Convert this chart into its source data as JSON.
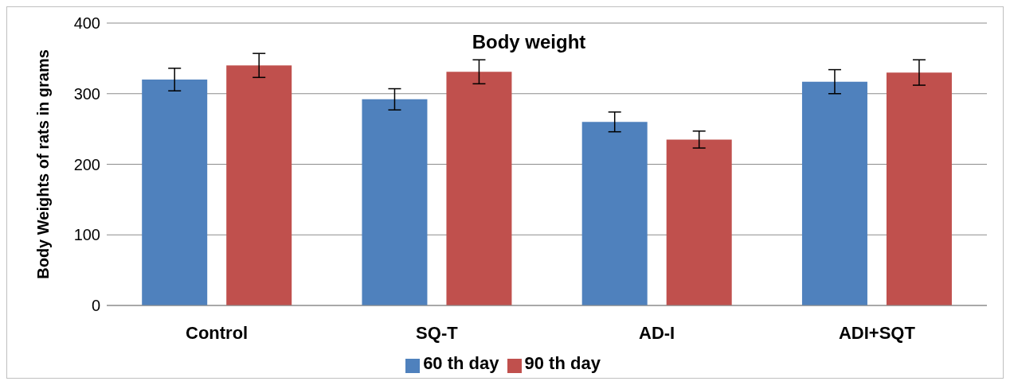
{
  "chart_data": {
    "type": "bar",
    "title": "Body weight",
    "ylabel": "Body Weights of rats in grams",
    "categories": [
      "Control",
      "SQ-T",
      "AD-I",
      "ADI+SQT"
    ],
    "series": [
      {
        "name": "60 th day",
        "color": "#4f81bd",
        "values": [
          320,
          292,
          260,
          317
        ],
        "errors": [
          16,
          15,
          14,
          17
        ]
      },
      {
        "name": "90 th day",
        "color": "#c0504d",
        "values": [
          340,
          331,
          235,
          330
        ],
        "errors": [
          17,
          17,
          12,
          18
        ]
      }
    ],
    "ylim": [
      0,
      400
    ],
    "yticks": [
      0,
      100,
      200,
      300,
      400
    ],
    "grid": "y",
    "legend": "bottom"
  }
}
